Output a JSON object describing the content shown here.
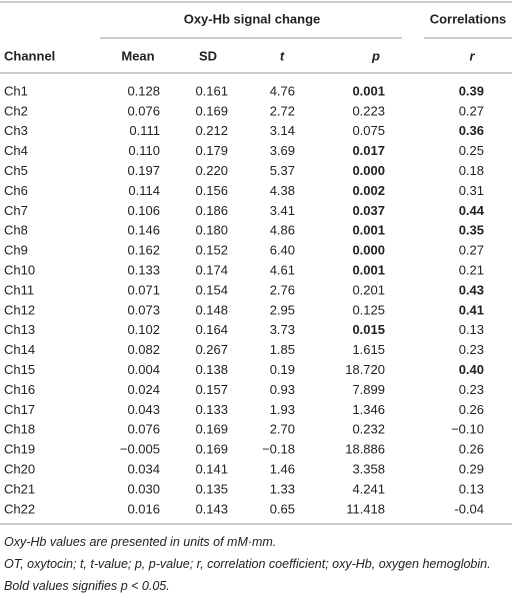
{
  "table": {
    "group_headers": [
      "Oxy-Hb signal change",
      "Correlations"
    ],
    "columns": [
      "Channel",
      "Mean",
      "SD",
      "t",
      "p",
      "r"
    ],
    "rows": [
      {
        "cells": [
          "Ch1",
          "0.128",
          "0.161",
          "4.76",
          "0.001",
          "0.39"
        ],
        "bold": [
          false,
          false,
          false,
          false,
          true,
          true
        ]
      },
      {
        "cells": [
          "Ch2",
          "0.076",
          "0.169",
          "2.72",
          "0.223",
          "0.27"
        ],
        "bold": [
          false,
          false,
          false,
          false,
          false,
          false
        ]
      },
      {
        "cells": [
          "Ch3",
          "0.111",
          "0.212",
          "3.14",
          "0.075",
          "0.36"
        ],
        "bold": [
          false,
          false,
          false,
          false,
          false,
          true
        ]
      },
      {
        "cells": [
          "Ch4",
          "0.110",
          "0.179",
          "3.69",
          "0.017",
          "0.25"
        ],
        "bold": [
          false,
          false,
          false,
          false,
          true,
          false
        ]
      },
      {
        "cells": [
          "Ch5",
          "0.197",
          "0.220",
          "5.37",
          "0.000",
          "0.18"
        ],
        "bold": [
          false,
          false,
          false,
          false,
          true,
          false
        ]
      },
      {
        "cells": [
          "Ch6",
          "0.114",
          "0.156",
          "4.38",
          "0.002",
          "0.31"
        ],
        "bold": [
          false,
          false,
          false,
          false,
          true,
          false
        ]
      },
      {
        "cells": [
          "Ch7",
          "0.106",
          "0.186",
          "3.41",
          "0.037",
          "0.44"
        ],
        "bold": [
          false,
          false,
          false,
          false,
          true,
          true
        ]
      },
      {
        "cells": [
          "Ch8",
          "0.146",
          "0.180",
          "4.86",
          "0.001",
          "0.35"
        ],
        "bold": [
          false,
          false,
          false,
          false,
          true,
          true
        ]
      },
      {
        "cells": [
          "Ch9",
          "0.162",
          "0.152",
          "6.40",
          "0.000",
          "0.27"
        ],
        "bold": [
          false,
          false,
          false,
          false,
          true,
          false
        ]
      },
      {
        "cells": [
          "Ch10",
          "0.133",
          "0.174",
          "4.61",
          "0.001",
          "0.21"
        ],
        "bold": [
          false,
          false,
          false,
          false,
          true,
          false
        ]
      },
      {
        "cells": [
          "Ch11",
          "0.071",
          "0.154",
          "2.76",
          "0.201",
          "0.43"
        ],
        "bold": [
          false,
          false,
          false,
          false,
          false,
          true
        ]
      },
      {
        "cells": [
          "Ch12",
          "0.073",
          "0.148",
          "2.95",
          "0.125",
          "0.41"
        ],
        "bold": [
          false,
          false,
          false,
          false,
          false,
          true
        ]
      },
      {
        "cells": [
          "Ch13",
          "0.102",
          "0.164",
          "3.73",
          "0.015",
          "0.13"
        ],
        "bold": [
          false,
          false,
          false,
          false,
          true,
          false
        ]
      },
      {
        "cells": [
          "Ch14",
          "0.082",
          "0.267",
          "1.85",
          "1.615",
          "0.23"
        ],
        "bold": [
          false,
          false,
          false,
          false,
          false,
          false
        ]
      },
      {
        "cells": [
          "Ch15",
          "0.004",
          "0.138",
          "0.19",
          "18.720",
          "0.40"
        ],
        "bold": [
          false,
          false,
          false,
          false,
          false,
          true
        ]
      },
      {
        "cells": [
          "Ch16",
          "0.024",
          "0.157",
          "0.93",
          "7.899",
          "0.23"
        ],
        "bold": [
          false,
          false,
          false,
          false,
          false,
          false
        ]
      },
      {
        "cells": [
          "Ch17",
          "0.043",
          "0.133",
          "1.93",
          "1.346",
          "0.26"
        ],
        "bold": [
          false,
          false,
          false,
          false,
          false,
          false
        ]
      },
      {
        "cells": [
          "Ch18",
          "0.076",
          "0.169",
          "2.70",
          "0.232",
          "−0.10"
        ],
        "bold": [
          false,
          false,
          false,
          false,
          false,
          false
        ]
      },
      {
        "cells": [
          "Ch19",
          "−0.005",
          "0.169",
          "−0.18",
          "18.886",
          "0.26"
        ],
        "bold": [
          false,
          false,
          false,
          false,
          false,
          false
        ]
      },
      {
        "cells": [
          "Ch20",
          "0.034",
          "0.141",
          "1.46",
          "3.358",
          "0.29"
        ],
        "bold": [
          false,
          false,
          false,
          false,
          false,
          false
        ]
      },
      {
        "cells": [
          "Ch21",
          "0.030",
          "0.135",
          "1.33",
          "4.241",
          "0.13"
        ],
        "bold": [
          false,
          false,
          false,
          false,
          false,
          false
        ]
      },
      {
        "cells": [
          "Ch22",
          "0.016",
          "0.143",
          "0.65",
          "11.418",
          "-0.04"
        ],
        "bold": [
          false,
          false,
          false,
          false,
          false,
          false
        ]
      }
    ],
    "footnotes": [
      "Oxy-Hb values are presented in units of mM·mm.",
      "OT, oxytocin; t, t-value; p, p-value; r, correlation coefficient; oxy-Hb, oxygen hemoglobin.",
      "Bold values signifies p < 0.05."
    ]
  }
}
